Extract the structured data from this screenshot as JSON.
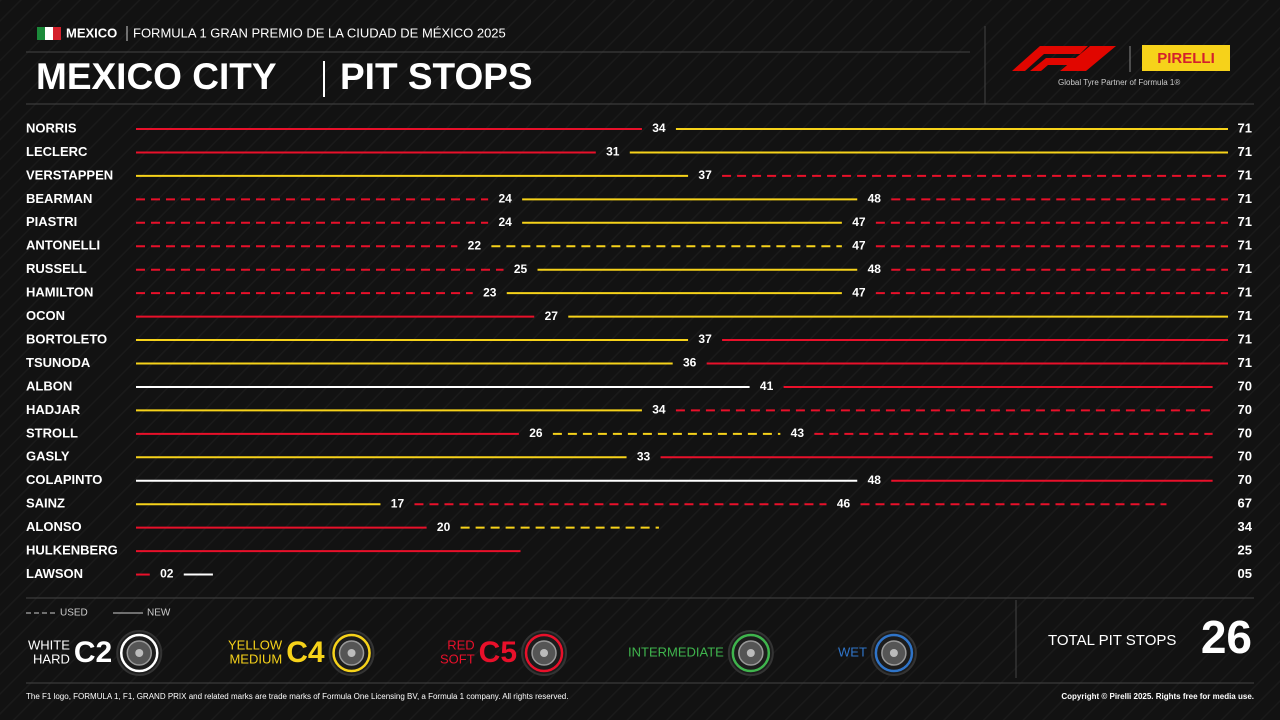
{
  "header": {
    "country": "MEXICO",
    "event": "FORMULA 1 GRAN PREMIO DE LA CIUDAD DE MÉXICO 2025",
    "title": "MEXICO CITY",
    "subtitle": "PIT STOPS"
  },
  "partner": {
    "brand": "PIRELLI",
    "tagline": "Global Tyre Partner of Formula 1®"
  },
  "chart_data": {
    "type": "strategy",
    "drivers": [
      {
        "name": "NORRIS",
        "stops": [
          34
        ],
        "finish": 71,
        "stints": [
          {
            "compound": "C5",
            "used": false
          },
          {
            "compound": "C4",
            "used": false
          }
        ]
      },
      {
        "name": "LECLERC",
        "stops": [
          31
        ],
        "finish": 71,
        "stints": [
          {
            "compound": "C5",
            "used": false
          },
          {
            "compound": "C4",
            "used": false
          }
        ]
      },
      {
        "name": "VERSTAPPEN",
        "stops": [
          37
        ],
        "finish": 71,
        "stints": [
          {
            "compound": "C4",
            "used": false
          },
          {
            "compound": "C5",
            "used": true
          }
        ]
      },
      {
        "name": "BEARMAN",
        "stops": [
          24,
          48
        ],
        "finish": 71,
        "stints": [
          {
            "compound": "C5",
            "used": true
          },
          {
            "compound": "C4",
            "used": false
          },
          {
            "compound": "C5",
            "used": true
          }
        ]
      },
      {
        "name": "PIASTRI",
        "stops": [
          24,
          47
        ],
        "finish": 71,
        "stints": [
          {
            "compound": "C5",
            "used": true
          },
          {
            "compound": "C4",
            "used": false
          },
          {
            "compound": "C5",
            "used": true
          }
        ]
      },
      {
        "name": "ANTONELLI",
        "stops": [
          22,
          47
        ],
        "finish": 71,
        "stints": [
          {
            "compound": "C5",
            "used": true
          },
          {
            "compound": "C4",
            "used": true
          },
          {
            "compound": "C5",
            "used": true
          }
        ]
      },
      {
        "name": "RUSSELL",
        "stops": [
          25,
          48
        ],
        "finish": 71,
        "stints": [
          {
            "compound": "C5",
            "used": true
          },
          {
            "compound": "C4",
            "used": false
          },
          {
            "compound": "C5",
            "used": true
          }
        ]
      },
      {
        "name": "HAMILTON",
        "stops": [
          23,
          47
        ],
        "finish": 71,
        "stints": [
          {
            "compound": "C5",
            "used": true
          },
          {
            "compound": "C4",
            "used": false
          },
          {
            "compound": "C5",
            "used": true
          }
        ]
      },
      {
        "name": "OCON",
        "stops": [
          27
        ],
        "finish": 71,
        "stints": [
          {
            "compound": "C5",
            "used": false
          },
          {
            "compound": "C4",
            "used": false
          }
        ]
      },
      {
        "name": "BORTOLETO",
        "stops": [
          37
        ],
        "finish": 71,
        "stints": [
          {
            "compound": "C4",
            "used": false
          },
          {
            "compound": "C5",
            "used": false
          }
        ]
      },
      {
        "name": "TSUNODA",
        "stops": [
          36
        ],
        "finish": 71,
        "stints": [
          {
            "compound": "C4",
            "used": false
          },
          {
            "compound": "C5",
            "used": false
          }
        ]
      },
      {
        "name": "ALBON",
        "stops": [
          41
        ],
        "finish": 70,
        "stints": [
          {
            "compound": "C2",
            "used": false
          },
          {
            "compound": "C5",
            "used": false
          }
        ]
      },
      {
        "name": "HADJAR",
        "stops": [
          34
        ],
        "finish": 70,
        "stints": [
          {
            "compound": "C4",
            "used": false
          },
          {
            "compound": "C5",
            "used": true
          }
        ]
      },
      {
        "name": "STROLL",
        "stops": [
          26,
          43
        ],
        "finish": 70,
        "stints": [
          {
            "compound": "C5",
            "used": false
          },
          {
            "compound": "C4",
            "used": true
          },
          {
            "compound": "C5",
            "used": true
          }
        ]
      },
      {
        "name": "GASLY",
        "stops": [
          33
        ],
        "finish": 70,
        "stints": [
          {
            "compound": "C4",
            "used": false
          },
          {
            "compound": "C5",
            "used": false
          }
        ]
      },
      {
        "name": "COLAPINTO",
        "stops": [
          48
        ],
        "finish": 70,
        "stints": [
          {
            "compound": "C2",
            "used": false
          },
          {
            "compound": "C5",
            "used": false
          }
        ]
      },
      {
        "name": "SAINZ",
        "stops": [
          17,
          46
        ],
        "finish": 67,
        "stints": [
          {
            "compound": "C4",
            "used": false
          },
          {
            "compound": "C5",
            "used": true
          },
          {
            "compound": "C5",
            "used": true
          }
        ]
      },
      {
        "name": "ALONSO",
        "stops": [
          20
        ],
        "finish": 34,
        "stints": [
          {
            "compound": "C5",
            "used": false
          },
          {
            "compound": "C4",
            "used": true
          }
        ]
      },
      {
        "name": "HULKENBERG",
        "stops": [],
        "finish": 25,
        "stints": [
          {
            "compound": "C5",
            "used": false
          }
        ]
      },
      {
        "name": "LAWSON",
        "stops": [
          {
            "value": 2,
            "label": "02"
          }
        ],
        "finish": {
          "value": 5,
          "label": "05"
        },
        "stints": [
          {
            "compound": "C5",
            "used": false
          },
          {
            "compound": "C2",
            "used": false
          }
        ]
      }
    ]
  },
  "legend": {
    "used": "USED",
    "new": "NEW"
  },
  "tyres": [
    {
      "label": [
        "WHITE",
        "HARD"
      ],
      "code": "C2",
      "color": "#ffffff"
    },
    {
      "label": [
        "YELLOW",
        "MEDIUM"
      ],
      "code": "C4",
      "color": "#f6d21a"
    },
    {
      "label": [
        "RED",
        "SOFT"
      ],
      "code": "C5",
      "color": "#e8102a"
    },
    {
      "label": [
        "INTERMEDIATE"
      ],
      "color": "#3fb44d"
    },
    {
      "label": [
        "WET"
      ],
      "color": "#2f74c8"
    }
  ],
  "total": {
    "label": "TOTAL PIT STOPS",
    "value": 26
  },
  "footer": {
    "disclaimer": "The F1 logo, FORMULA 1, F1, GRAND PRIX and related marks are trade marks of Formula One Licensing BV, a Formula 1 company. All rights reserved.",
    "copyright": "Copyright © Pirelli 2025. Rights free for media use."
  }
}
